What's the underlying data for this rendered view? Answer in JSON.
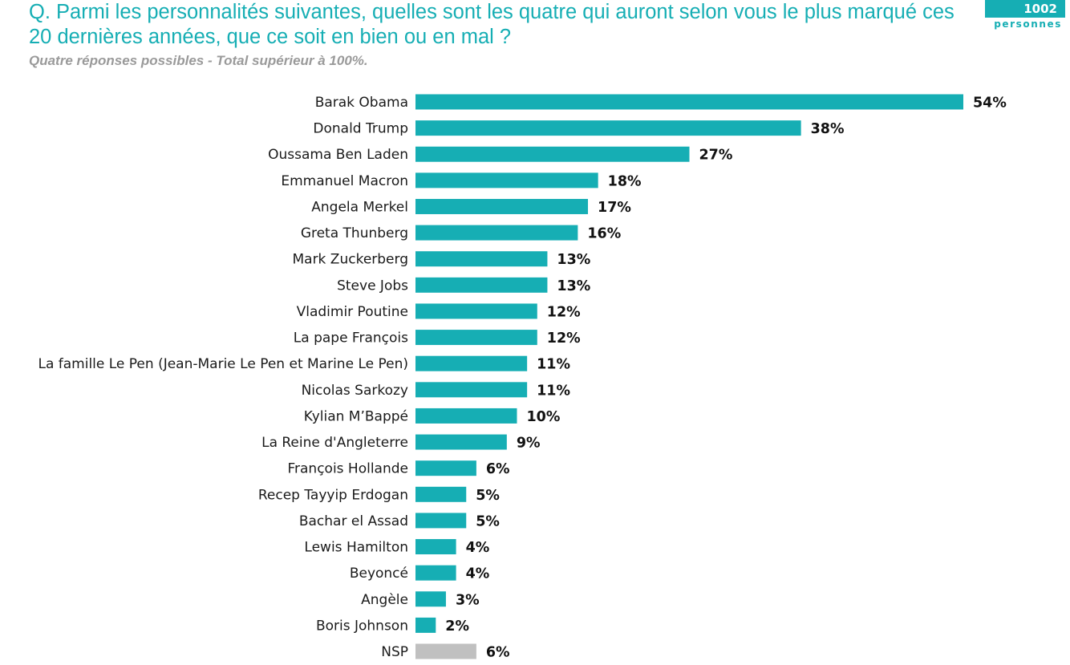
{
  "header": {
    "question": "Q. Parmi les personnalités suivantes, quelles sont les quatre qui auront selon vous le plus marqué ces 20 dernières années, que ce soit en bien ou en mal ?",
    "subtitle": "Quatre réponses possibles - Total supérieur à 100%.",
    "badge_count": "1002",
    "badge_label": "personnes"
  },
  "colors": {
    "bar": "#16aeb4",
    "bar_nsp": "#c0c0c0",
    "accent": "#16aeb4"
  },
  "chart_data": {
    "type": "bar",
    "orientation": "horizontal",
    "categories": [
      "Barak Obama",
      "Donald Trump",
      "Oussama Ben Laden",
      "Emmanuel Macron",
      "Angela Merkel",
      "Greta Thunberg",
      "Mark Zuckerberg",
      "Steve Jobs",
      "Vladimir Poutine",
      "La pape François",
      "La famille Le Pen (Jean-Marie Le Pen et Marine Le Pen)",
      "Nicolas Sarkozy",
      "Kylian M’Bappé",
      "La Reine d'Angleterre",
      "François Hollande",
      "Recep Tayyip Erdogan",
      "Bachar el Assad",
      "Lewis Hamilton",
      "Beyoncé",
      "Angèle",
      "Boris Johnson",
      "NSP"
    ],
    "values": [
      54,
      38,
      27,
      18,
      17,
      16,
      13,
      13,
      12,
      12,
      11,
      11,
      10,
      9,
      6,
      5,
      5,
      4,
      4,
      3,
      2,
      6
    ],
    "value_labels": [
      "54%",
      "38%",
      "27%",
      "18%",
      "17%",
      "16%",
      "13%",
      "13%",
      "12%",
      "12%",
      "11%",
      "11%",
      "10%",
      "9%",
      "6%",
      "5%",
      "5%",
      "4%",
      "4%",
      "3%",
      "2%",
      "6%"
    ],
    "highlight_gray": [
      "NSP"
    ],
    "unit": "%",
    "xlim": [
      0,
      54
    ],
    "grid": false,
    "legend": "none"
  }
}
